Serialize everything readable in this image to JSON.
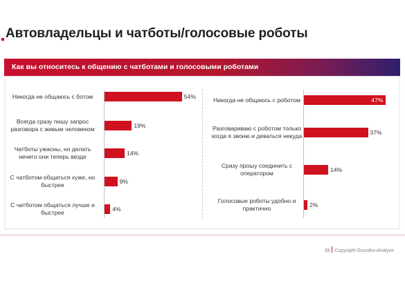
{
  "slide": {
    "title": "Автовладельцы и чатботы/голосовые роботы",
    "banner": "Как вы относитесь к общению с чатботами и голосовыми роботами",
    "page_number": "35",
    "copyright": "Copyright Gruzdev-Analyze"
  },
  "chart_data": [
    {
      "type": "bar",
      "orientation": "horizontal",
      "categories": [
        "Никогда не общаюсь с ботом",
        "Всегда сразу пишу запрос разговора с живым человеком",
        "Чатботы ужасны, но делать нечего они теперь везде",
        "С чатботом общаться хуже, но быстрее",
        "С чатботом общаться лучше и быстрее"
      ],
      "values": [
        54,
        19,
        14,
        9,
        4
      ],
      "value_labels": [
        "54%",
        "19%",
        "14%",
        "9%",
        "4%"
      ],
      "unit": "%",
      "xlim": [
        0,
        60
      ],
      "grid": false,
      "colors": {
        "bar": "#d0111f"
      }
    },
    {
      "type": "bar",
      "orientation": "horizontal",
      "categories": [
        "Никогда не общаюсь с роботом",
        "Разговариваю с роботом только когда я звоню и деваться некуда",
        "Сразу прошу соединить с оператором",
        "Голосовые роботы удобно и практично"
      ],
      "values": [
        47,
        37,
        14,
        2
      ],
      "value_labels": [
        "47%",
        "37%",
        "14%",
        "2%"
      ],
      "unit": "%",
      "xlim": [
        0,
        50
      ],
      "grid": false,
      "colors": {
        "bar": "#d0111f"
      }
    }
  ]
}
